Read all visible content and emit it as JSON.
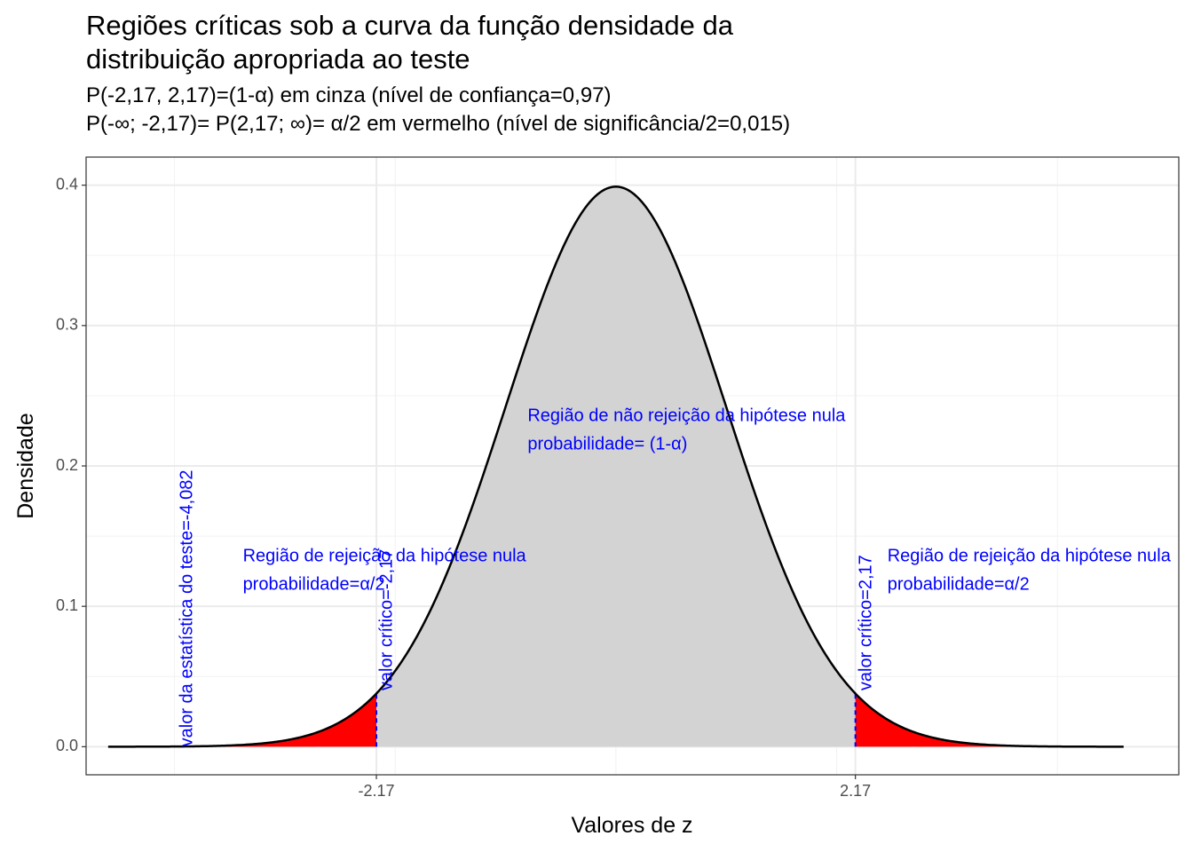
{
  "chart_data": {
    "type": "area",
    "title_lines": [
      "Regiões críticas sob a curva da função densidade da",
      "distribuição apropriada ao teste"
    ],
    "subtitle_lines": [
      "P(-2,17, 2,17)=(1-α) em cinza (nível de confiança=0,97)",
      "P(-∞; -2,17)= P(2,17; ∞)= α/2 em vermelho (nível de significância/2=0,015)"
    ],
    "xlabel": "Valores de z",
    "ylabel": "Densidade",
    "xlim": [
      -4.8,
      5.1
    ],
    "ylim": [
      -0.02,
      0.42
    ],
    "x_ticks": [
      -2.17,
      2.17
    ],
    "x_tick_labels": [
      "-2.17",
      "2.17"
    ],
    "x_minor_gridlines": [
      -4,
      -2,
      0,
      2,
      4
    ],
    "y_ticks": [
      0.0,
      0.1,
      0.2,
      0.3,
      0.4
    ],
    "y_tick_labels": [
      "0.0",
      "0.1",
      "0.2",
      "0.3",
      "0.4"
    ],
    "grid": true,
    "curve": {
      "distribution": "standard normal",
      "x_from": -4.6,
      "x_to": 4.6,
      "color": "#000000"
    },
    "regions": [
      {
        "name": "left rejection",
        "from": -4.6,
        "to": -2.17,
        "color": "#ff0000"
      },
      {
        "name": "non-rejection",
        "from": -2.17,
        "to": 2.17,
        "color": "#d3d3d3"
      },
      {
        "name": "right rejection",
        "from": 2.17,
        "to": 4.6,
        "color": "#ff0000"
      }
    ],
    "critical_lines": [
      {
        "x": -2.17,
        "color": "#0000ff",
        "dashed": true
      },
      {
        "x": 2.17,
        "color": "#0000ff",
        "dashed": true
      }
    ],
    "annotation_color": "#0000ff",
    "annotations": [
      {
        "text_lines": [
          "Região de não rejeição da hipótese nula",
          "probabilidade= (1-α)"
        ],
        "x": -0.8,
        "y": 0.225,
        "rotate": 0
      },
      {
        "text_lines": [
          "Região de rejeição da hipótese nula",
          "probabilidade=α/2"
        ],
        "x": -3.38,
        "y": 0.125,
        "rotate": 0
      },
      {
        "text_lines": [
          "Região de rejeição da hipótese nula",
          "probabilidade=α/2"
        ],
        "x": 2.46,
        "y": 0.125,
        "rotate": 0
      },
      {
        "text_lines": [
          "valor crítico=-2,17"
        ],
        "x": -2.07,
        "y": 0.04,
        "rotate": -90
      },
      {
        "text_lines": [
          "valor crítico=2,17"
        ],
        "x": 2.27,
        "y": 0.04,
        "rotate": -90
      },
      {
        "text_lines": [
          "valor da estatística do teste=-4,082"
        ],
        "x": -3.88,
        "y": 0.0,
        "rotate": -90
      }
    ]
  }
}
